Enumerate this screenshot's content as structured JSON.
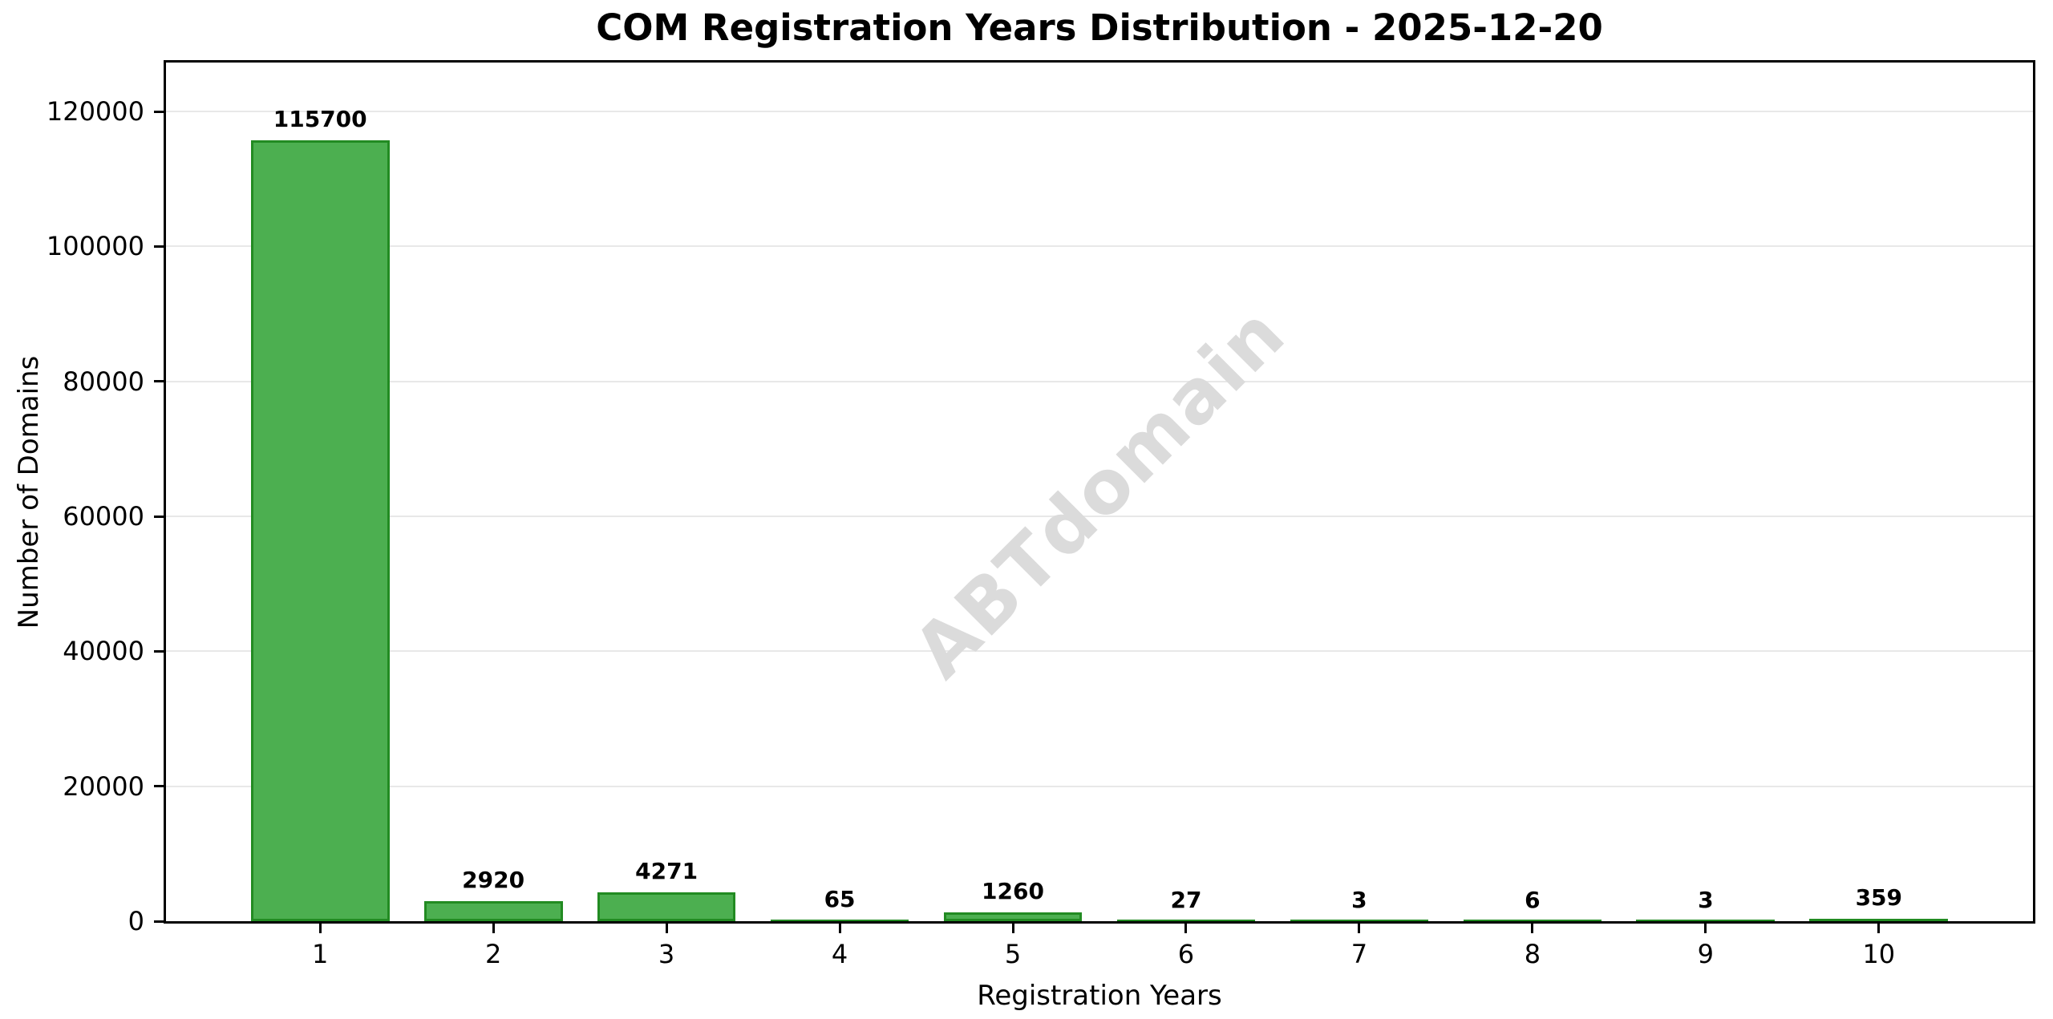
{
  "chart_data": {
    "type": "bar",
    "title": "COM Registration Years Distribution - 2025-12-20",
    "xlabel": "Registration Years",
    "ylabel": "Number of Domains",
    "categories": [
      "1",
      "2",
      "3",
      "4",
      "5",
      "6",
      "7",
      "8",
      "9",
      "10"
    ],
    "x_positions": [
      1,
      2,
      3,
      4,
      5,
      6,
      7,
      8,
      9,
      10
    ],
    "values": [
      115700,
      2920,
      4271,
      65,
      1260,
      27,
      3,
      6,
      3,
      359
    ],
    "bar_labels": [
      "115700",
      "2920",
      "4271",
      "65",
      "1260",
      "27",
      "3",
      "6",
      "3",
      "359"
    ],
    "yticks": [
      0,
      20000,
      40000,
      60000,
      80000,
      100000,
      120000
    ],
    "ytick_labels": [
      "0",
      "20000",
      "40000",
      "60000",
      "80000",
      "100000",
      "120000"
    ],
    "xlim": [
      0.11,
      10.89
    ],
    "ylim": [
      0,
      127270
    ],
    "bar_width": 0.8,
    "grid": {
      "axis": "y",
      "color": "#E8E8E8"
    },
    "legend": null,
    "watermark": {
      "text": "ABTdomain",
      "rotation_deg": -45
    },
    "colors": {
      "bar_fill": "#4CAF50",
      "bar_edge": "#228B22",
      "axis": "#000000",
      "text": "#000000",
      "watermark": "#DBDBDB",
      "background": "#FFFFFF"
    }
  }
}
